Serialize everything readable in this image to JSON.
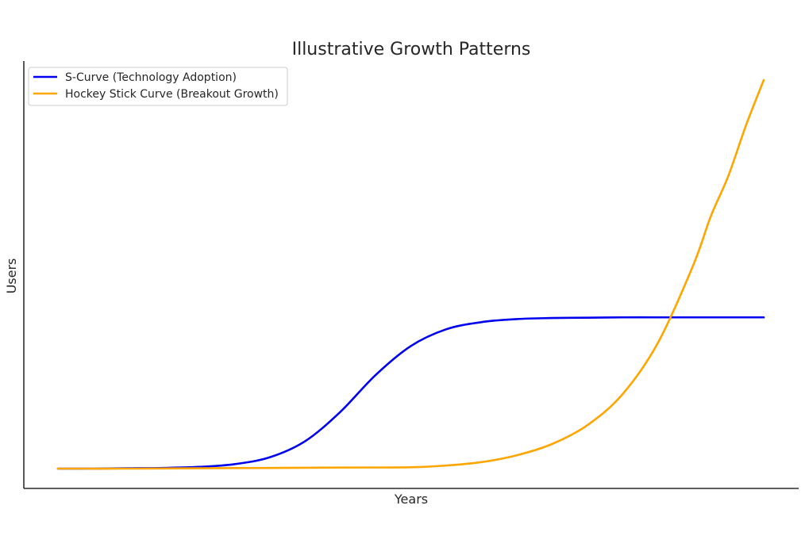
{
  "chart_data": {
    "type": "line",
    "title": "Illustrative Growth Patterns",
    "xlabel": "Years",
    "ylabel": "Users",
    "xlim": [
      0,
      10
    ],
    "ylim": [
      0,
      10
    ],
    "grid": false,
    "legend_position": "top-left",
    "series": [
      {
        "name": "S-Curve (Technology Adoption)",
        "color": "#0000ee",
        "x": [
          0.0,
          0.5,
          1.0,
          1.5,
          2.0,
          2.5,
          3.0,
          3.5,
          4.0,
          4.5,
          5.0,
          5.5,
          6.0,
          6.5,
          7.0,
          7.5,
          8.0,
          8.5,
          9.0,
          9.5,
          10.0
        ],
        "y": [
          0.0,
          0.0,
          0.01,
          0.02,
          0.05,
          0.13,
          0.33,
          0.8,
          1.66,
          2.74,
          3.59,
          4.08,
          4.29,
          4.38,
          4.41,
          4.42,
          4.43,
          4.43,
          4.43,
          4.43,
          4.43
        ]
      },
      {
        "name": "Hockey Stick Curve (Breakout Growth)",
        "color": "#ffa500",
        "x": [
          0.0,
          1.0,
          2.0,
          3.0,
          4.0,
          5.0,
          5.5,
          6.0,
          6.5,
          7.0,
          7.5,
          8.0,
          8.5,
          9.0,
          9.25,
          9.5,
          9.75,
          10.0
        ],
        "y": [
          0.0,
          0.0,
          0.01,
          0.02,
          0.03,
          0.04,
          0.09,
          0.19,
          0.39,
          0.72,
          1.27,
          2.18,
          3.68,
          5.95,
          7.39,
          8.58,
          10.06,
          11.38
        ]
      }
    ]
  }
}
